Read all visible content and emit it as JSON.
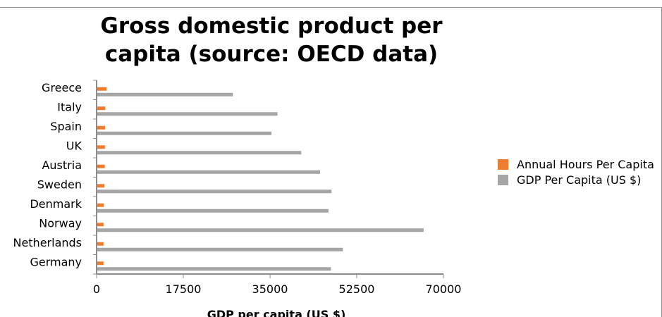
{
  "chart_data": {
    "type": "bar",
    "orientation": "horizontal",
    "title": "Gross domestic product per capita (source: OECD data)",
    "xlabel": "GDP per capita (US $)",
    "ylabel": "",
    "categories": [
      "Greece",
      "Italy",
      "Spain",
      "UK",
      "Austria",
      "Sweden",
      "Denmark",
      "Norway",
      "Netherlands",
      "Germany"
    ],
    "series": [
      {
        "name": "Annual Hours Per Capita",
        "color": "#ed7d31",
        "values": [
          2000,
          1750,
          1700,
          1680,
          1650,
          1600,
          1450,
          1400,
          1400,
          1400
        ]
      },
      {
        "name": "GDP Per Capita (US $)",
        "color": "#a5a5a5",
        "values": [
          27500,
          36500,
          35300,
          41300,
          45100,
          47400,
          46800,
          66000,
          49700,
          47300
        ]
      }
    ],
    "xlim": [
      0,
      70000
    ],
    "xticks": [
      "0",
      "17500",
      "35000",
      "52500",
      "70000"
    ],
    "legend_position": "right",
    "grid": false
  }
}
